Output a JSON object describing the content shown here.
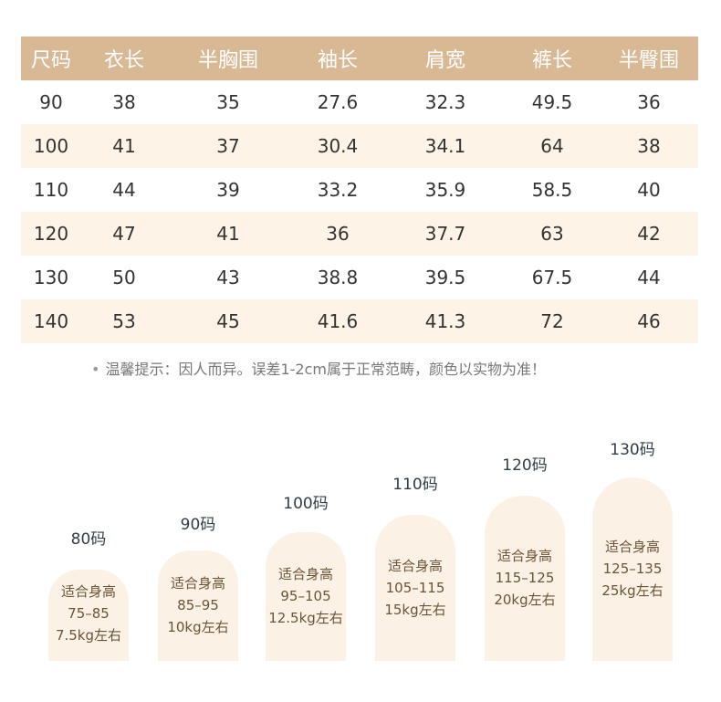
{
  "table": {
    "headers": [
      "尺码",
      "衣长",
      "半胸围",
      "袖长",
      "肩宽",
      "裤长",
      "半臀围"
    ],
    "rows": [
      [
        "90",
        "38",
        "35",
        "27.6",
        "32.3",
        "49.5",
        "36"
      ],
      [
        "100",
        "41",
        "37",
        "30.4",
        "34.1",
        "64",
        "38"
      ],
      [
        "110",
        "44",
        "39",
        "33.2",
        "35.9",
        "58.5",
        "40"
      ],
      [
        "120",
        "47",
        "41",
        "36",
        "37.7",
        "63",
        "42"
      ],
      [
        "130",
        "50",
        "43",
        "38.8",
        "39.5",
        "67.5",
        "44"
      ],
      [
        "140",
        "53",
        "45",
        "41.6",
        "41.3",
        "72",
        "46"
      ]
    ]
  },
  "note": {
    "bullet": "•",
    "text": "温馨提示：因人而异。误差1-2cm属于正常范畴，颜色以实物为准！"
  },
  "sizes": [
    {
      "size": "80码",
      "fit": "适合身高",
      "height": "75–85",
      "weight": "7.5kg左右"
    },
    {
      "size": "90码",
      "fit": "适合身高",
      "height": "85–95",
      "weight": "10kg左右"
    },
    {
      "size": "100码",
      "fit": "适合身高",
      "height": "95–105",
      "weight": "12.5kg左右"
    },
    {
      "size": "110码",
      "fit": "适合身高",
      "height": "105–115",
      "weight": "15kg左右"
    },
    {
      "size": "120码",
      "fit": "适合身高",
      "height": "115–125",
      "weight": "20kg左右"
    },
    {
      "size": "130码",
      "fit": "适合身高",
      "height": "125–135",
      "weight": "25kg左右"
    }
  ],
  "colors": {
    "header_bg": "#d8b994",
    "alt_row_bg": "#fdf3e6",
    "card_bg": "#fbf2e5"
  }
}
